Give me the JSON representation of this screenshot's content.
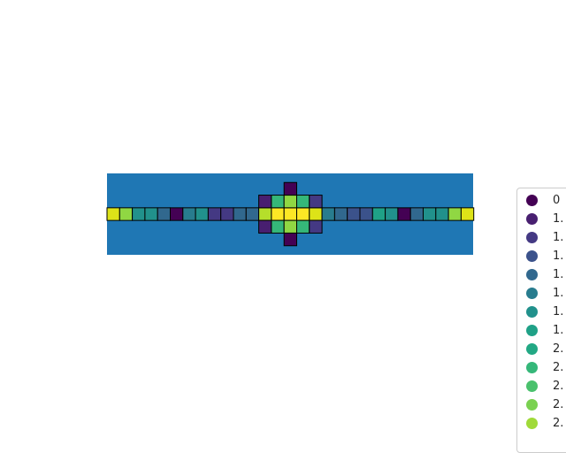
{
  "chart_data": {
    "type": "heatmap",
    "background_color": "#1f77b4",
    "cell_edge_color": "#000000",
    "colormap": "viridis",
    "grid": false,
    "axes_visible": false,
    "legend_position": "right",
    "row_cells": [
      {
        "col": 7,
        "color": "#440154"
      },
      {
        "col": 2,
        "color": "#481f70"
      },
      {
        "col": 3,
        "color": "#443983"
      },
      {
        "col": 4,
        "color": "#3b528b"
      },
      {
        "col": 5,
        "color": "#31688e"
      },
      {
        "col": 6,
        "color": "#287c8e"
      },
      {
        "col": 8,
        "color": "#21918c"
      },
      {
        "col": 9,
        "color": "#1fa187"
      },
      {
        "col": 10,
        "color": "#35b779"
      },
      {
        "col": 11,
        "color": "#5ec962"
      },
      {
        "col": 12,
        "color": "#90d743"
      },
      {
        "col": 13,
        "color": "#b5de2b"
      }
    ],
    "cells": [
      [
        0,
        0,
        "#dde318"
      ],
      [
        1,
        0,
        "#90d743"
      ],
      [
        2,
        0,
        "#21918c"
      ],
      [
        3,
        0,
        "#21918c"
      ],
      [
        4,
        0,
        "#31688e"
      ],
      [
        5,
        0,
        "#440154"
      ],
      [
        6,
        0,
        "#287c8e"
      ],
      [
        7,
        0,
        "#21918c"
      ],
      [
        8,
        0,
        "#443983"
      ],
      [
        9,
        0,
        "#443983"
      ],
      [
        10,
        0,
        "#31688e"
      ],
      [
        11,
        0,
        "#31688e"
      ],
      [
        12,
        0,
        "#b5de2b"
      ],
      [
        13,
        0,
        "#fde725"
      ],
      [
        14,
        0,
        "#fde725"
      ],
      [
        15,
        0,
        "#fde725"
      ],
      [
        16,
        0,
        "#dde318"
      ],
      [
        17,
        0,
        "#287c8e"
      ],
      [
        18,
        0,
        "#31688e"
      ],
      [
        19,
        0,
        "#3b528b"
      ],
      [
        20,
        0,
        "#3b528b"
      ],
      [
        21,
        0,
        "#1fa187"
      ],
      [
        22,
        0,
        "#21918c"
      ],
      [
        23,
        0,
        "#440154"
      ],
      [
        24,
        0,
        "#31688e"
      ],
      [
        25,
        0,
        "#21918c"
      ],
      [
        26,
        0,
        "#21918c"
      ],
      [
        27,
        0,
        "#90d743"
      ],
      [
        28,
        0,
        "#dde318"
      ],
      [
        12,
        -1,
        "#481f70"
      ],
      [
        13,
        -1,
        "#35b779"
      ],
      [
        14,
        -1,
        "#90d743"
      ],
      [
        15,
        -1,
        "#35b779"
      ],
      [
        16,
        -1,
        "#443983"
      ],
      [
        14,
        -2,
        "#440154"
      ],
      [
        12,
        1,
        "#481f70"
      ],
      [
        13,
        1,
        "#35b779"
      ],
      [
        14,
        1,
        "#90d743"
      ],
      [
        15,
        1,
        "#35b779"
      ],
      [
        16,
        1,
        "#443983"
      ],
      [
        14,
        2,
        "#440154"
      ]
    ],
    "legend": [
      {
        "label": "0",
        "color": "#440154"
      },
      {
        "label": "1.",
        "color": "#481f70"
      },
      {
        "label": "1.",
        "color": "#443983"
      },
      {
        "label": "1.",
        "color": "#3b528b"
      },
      {
        "label": "1.",
        "color": "#31688e"
      },
      {
        "label": "1.",
        "color": "#287c8e"
      },
      {
        "label": "1.",
        "color": "#21918c"
      },
      {
        "label": "1.",
        "color": "#1fa187"
      },
      {
        "label": "2.",
        "color": "#22a884"
      },
      {
        "label": "2.",
        "color": "#35b779"
      },
      {
        "label": "2.",
        "color": "#4ac16d"
      },
      {
        "label": "2.",
        "color": "#7ad151"
      },
      {
        "label": "2.",
        "color": "#a0da39"
      }
    ]
  }
}
